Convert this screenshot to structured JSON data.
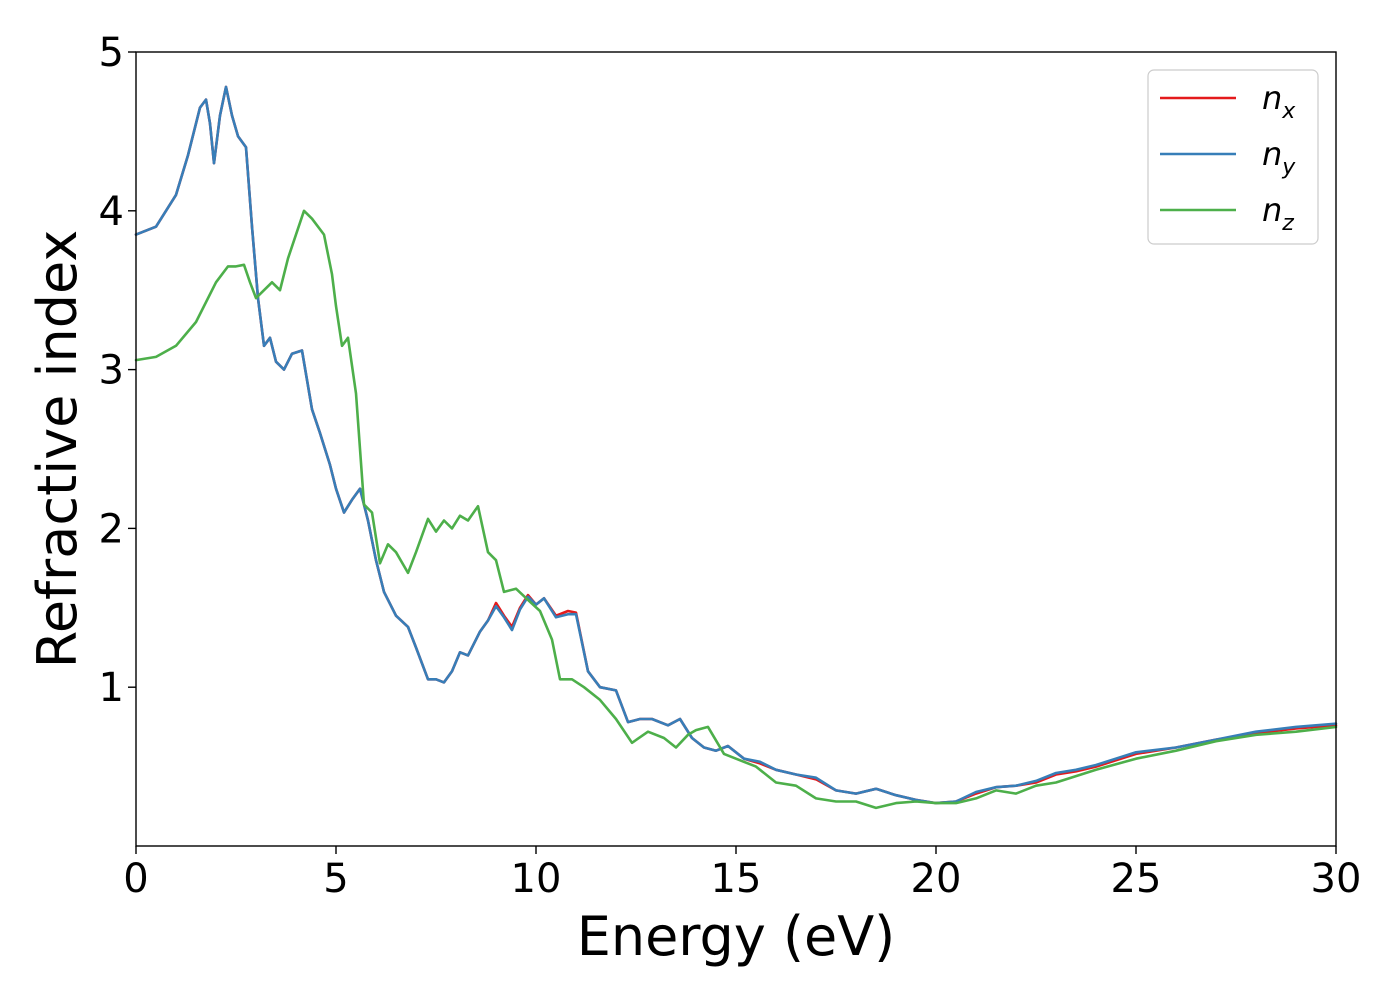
{
  "chart_data": {
    "type": "line",
    "title": "",
    "xlabel": "Energy (eV)",
    "ylabel": "Refractive index",
    "xlim": [
      0,
      30
    ],
    "ylim": [
      0,
      5
    ],
    "xticks": [
      0,
      5,
      10,
      15,
      20,
      25,
      30
    ],
    "yticks": [
      1,
      2,
      3,
      4,
      5
    ],
    "grid": false,
    "legend_position": "top-right",
    "series": [
      {
        "name": "n",
        "subscript": "x",
        "color": "#e41a1c",
        "x": [
          0,
          0.5,
          1.0,
          1.3,
          1.6,
          1.75,
          1.85,
          1.95,
          2.1,
          2.25,
          2.4,
          2.55,
          2.75,
          2.9,
          3.05,
          3.2,
          3.35,
          3.5,
          3.7,
          3.9,
          4.15,
          4.4,
          4.6,
          4.85,
          5.0,
          5.2,
          5.4,
          5.6,
          5.8,
          6.0,
          6.2,
          6.5,
          6.8,
          7.0,
          7.3,
          7.5,
          7.7,
          7.9,
          8.1,
          8.3,
          8.6,
          8.8,
          9.0,
          9.2,
          9.4,
          9.6,
          9.8,
          10.0,
          10.2,
          10.5,
          10.8,
          11.0,
          11.3,
          11.6,
          12.0,
          12.3,
          12.6,
          12.9,
          13.3,
          13.6,
          13.9,
          14.2,
          14.5,
          14.8,
          15.2,
          15.6,
          16.0,
          16.5,
          17.0,
          17.5,
          18.0,
          18.5,
          19.0,
          19.5,
          20.0,
          20.5,
          21.0,
          21.5,
          22.0,
          22.5,
          23.0,
          23.5,
          24.0,
          25.0,
          26.0,
          27.0,
          28.0,
          29.0,
          30.0
        ],
        "y": [
          3.85,
          3.9,
          4.1,
          4.35,
          4.65,
          4.7,
          4.55,
          4.3,
          4.6,
          4.78,
          4.6,
          4.47,
          4.4,
          3.9,
          3.45,
          3.15,
          3.2,
          3.05,
          3.0,
          3.1,
          3.12,
          2.75,
          2.6,
          2.4,
          2.25,
          2.1,
          2.18,
          2.25,
          2.05,
          1.8,
          1.6,
          1.45,
          1.38,
          1.25,
          1.05,
          1.05,
          1.03,
          1.1,
          1.22,
          1.2,
          1.35,
          1.42,
          1.53,
          1.45,
          1.38,
          1.5,
          1.58,
          1.52,
          1.56,
          1.45,
          1.48,
          1.47,
          1.1,
          1.0,
          0.98,
          0.78,
          0.8,
          0.8,
          0.76,
          0.8,
          0.68,
          0.62,
          0.6,
          0.63,
          0.55,
          0.52,
          0.48,
          0.45,
          0.42,
          0.35,
          0.33,
          0.36,
          0.32,
          0.29,
          0.27,
          0.28,
          0.33,
          0.37,
          0.38,
          0.4,
          0.45,
          0.47,
          0.5,
          0.58,
          0.62,
          0.67,
          0.71,
          0.74,
          0.76
        ]
      },
      {
        "name": "n",
        "subscript": "y",
        "color": "#377eb8",
        "x": [
          0,
          0.5,
          1.0,
          1.3,
          1.6,
          1.75,
          1.85,
          1.95,
          2.1,
          2.25,
          2.4,
          2.55,
          2.75,
          2.9,
          3.05,
          3.2,
          3.35,
          3.5,
          3.7,
          3.9,
          4.15,
          4.4,
          4.6,
          4.85,
          5.0,
          5.2,
          5.4,
          5.6,
          5.8,
          6.0,
          6.2,
          6.5,
          6.8,
          7.0,
          7.3,
          7.5,
          7.7,
          7.9,
          8.1,
          8.3,
          8.6,
          8.8,
          9.0,
          9.2,
          9.4,
          9.6,
          9.8,
          10.0,
          10.2,
          10.5,
          10.8,
          11.0,
          11.3,
          11.6,
          12.0,
          12.3,
          12.6,
          12.9,
          13.3,
          13.6,
          13.9,
          14.2,
          14.5,
          14.8,
          15.2,
          15.6,
          16.0,
          16.5,
          17.0,
          17.5,
          18.0,
          18.5,
          19.0,
          19.5,
          20.0,
          20.5,
          21.0,
          21.5,
          22.0,
          22.5,
          23.0,
          23.5,
          24.0,
          25.0,
          26.0,
          27.0,
          28.0,
          29.0,
          30.0
        ],
        "y": [
          3.85,
          3.9,
          4.1,
          4.35,
          4.65,
          4.7,
          4.55,
          4.3,
          4.6,
          4.78,
          4.6,
          4.47,
          4.4,
          3.9,
          3.45,
          3.15,
          3.2,
          3.05,
          3.0,
          3.1,
          3.12,
          2.75,
          2.6,
          2.4,
          2.25,
          2.1,
          2.18,
          2.25,
          2.05,
          1.8,
          1.6,
          1.45,
          1.38,
          1.25,
          1.05,
          1.05,
          1.03,
          1.1,
          1.22,
          1.2,
          1.35,
          1.42,
          1.51,
          1.44,
          1.36,
          1.49,
          1.57,
          1.52,
          1.56,
          1.44,
          1.46,
          1.46,
          1.1,
          1.0,
          0.98,
          0.78,
          0.8,
          0.8,
          0.76,
          0.8,
          0.68,
          0.62,
          0.6,
          0.63,
          0.55,
          0.53,
          0.48,
          0.45,
          0.43,
          0.35,
          0.33,
          0.36,
          0.32,
          0.29,
          0.27,
          0.28,
          0.34,
          0.37,
          0.38,
          0.41,
          0.46,
          0.48,
          0.51,
          0.59,
          0.62,
          0.67,
          0.72,
          0.75,
          0.77
        ]
      },
      {
        "name": "n",
        "subscript": "z",
        "color": "#4daf4a",
        "x": [
          0,
          0.5,
          1.0,
          1.5,
          2.0,
          2.3,
          2.5,
          2.7,
          2.85,
          3.0,
          3.2,
          3.4,
          3.6,
          3.8,
          4.0,
          4.2,
          4.4,
          4.7,
          4.9,
          5.0,
          5.15,
          5.3,
          5.5,
          5.7,
          5.9,
          6.1,
          6.3,
          6.5,
          6.8,
          7.0,
          7.3,
          7.5,
          7.7,
          7.9,
          8.1,
          8.3,
          8.55,
          8.8,
          9.0,
          9.2,
          9.5,
          9.8,
          10.1,
          10.4,
          10.6,
          10.9,
          11.2,
          11.6,
          12.0,
          12.4,
          12.8,
          13.2,
          13.5,
          13.8,
          14.0,
          14.3,
          14.7,
          15.0,
          15.5,
          16.0,
          16.5,
          17.0,
          17.5,
          18.0,
          18.5,
          19.0,
          19.5,
          20.0,
          20.5,
          21.0,
          21.5,
          22.0,
          22.5,
          23.0,
          23.5,
          24.0,
          25.0,
          26.0,
          27.0,
          28.0,
          29.0,
          30.0
        ],
        "y": [
          3.06,
          3.08,
          3.15,
          3.3,
          3.55,
          3.65,
          3.65,
          3.66,
          3.55,
          3.45,
          3.5,
          3.55,
          3.5,
          3.7,
          3.85,
          4.0,
          3.95,
          3.85,
          3.6,
          3.4,
          3.15,
          3.2,
          2.85,
          2.15,
          2.1,
          1.78,
          1.9,
          1.85,
          1.72,
          1.85,
          2.06,
          1.98,
          2.05,
          2.0,
          2.08,
          2.05,
          2.14,
          1.85,
          1.8,
          1.6,
          1.62,
          1.55,
          1.48,
          1.3,
          1.05,
          1.05,
          1.0,
          0.92,
          0.8,
          0.65,
          0.72,
          0.68,
          0.62,
          0.7,
          0.73,
          0.75,
          0.58,
          0.55,
          0.5,
          0.4,
          0.38,
          0.3,
          0.28,
          0.28,
          0.24,
          0.27,
          0.28,
          0.27,
          0.27,
          0.3,
          0.35,
          0.33,
          0.38,
          0.4,
          0.44,
          0.48,
          0.55,
          0.6,
          0.66,
          0.7,
          0.72,
          0.75
        ]
      }
    ]
  }
}
